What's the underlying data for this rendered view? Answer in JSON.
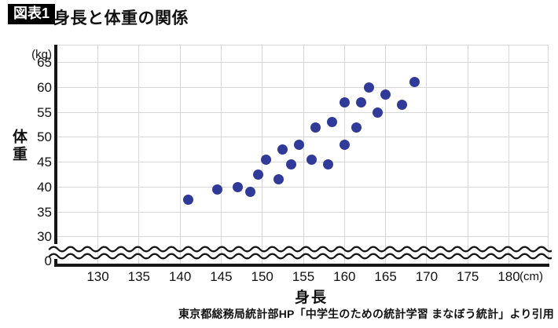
{
  "title": {
    "badge": "図表1",
    "text": "身長と体重の関係"
  },
  "caption": "東京都総務局統計部HP「中学生のための統計学習 まなぼう統計」より引用",
  "colors": {
    "dot": "#303a99",
    "grid": "#d6d6d6",
    "axis": "#161616",
    "badge_bg": "#000000",
    "badge_fg": "#ffffff"
  },
  "chart_data": {
    "type": "scatter",
    "title": "身長と体重の関係",
    "xlabel": "身長",
    "x_unit": "(cm)",
    "ylabel": "体重",
    "y_unit": "(kg)",
    "x_ticks": [
      130,
      135,
      140,
      145,
      150,
      155,
      160,
      165,
      170,
      175,
      180
    ],
    "y_ticks": [
      65,
      60,
      55,
      50,
      45,
      40,
      35,
      30
    ],
    "y_zero_label": "0",
    "axis_break": "wavy double-line break on y-axis between 0 and 30",
    "xlim": [
      125,
      185
    ],
    "ylim": [
      0,
      68
    ],
    "grid": "on",
    "legend": "none",
    "points_unit": {
      "x": "cm",
      "y": "kg"
    },
    "points": [
      [
        141,
        37.5
      ],
      [
        144.5,
        39.5
      ],
      [
        147,
        40
      ],
      [
        148.5,
        39
      ],
      [
        149.5,
        42.5
      ],
      [
        150.5,
        45.5
      ],
      [
        152,
        41.5
      ],
      [
        152.5,
        47.5
      ],
      [
        153.5,
        44.5
      ],
      [
        154.5,
        48.5
      ],
      [
        156,
        45.5
      ],
      [
        156.5,
        52
      ],
      [
        158,
        44.5
      ],
      [
        158.5,
        53
      ],
      [
        160,
        48.5
      ],
      [
        160,
        57
      ],
      [
        161.5,
        52
      ],
      [
        162,
        57
      ],
      [
        163,
        60
      ],
      [
        164,
        55
      ],
      [
        165,
        58.5
      ],
      [
        167,
        56.5
      ],
      [
        168.5,
        61
      ]
    ]
  }
}
